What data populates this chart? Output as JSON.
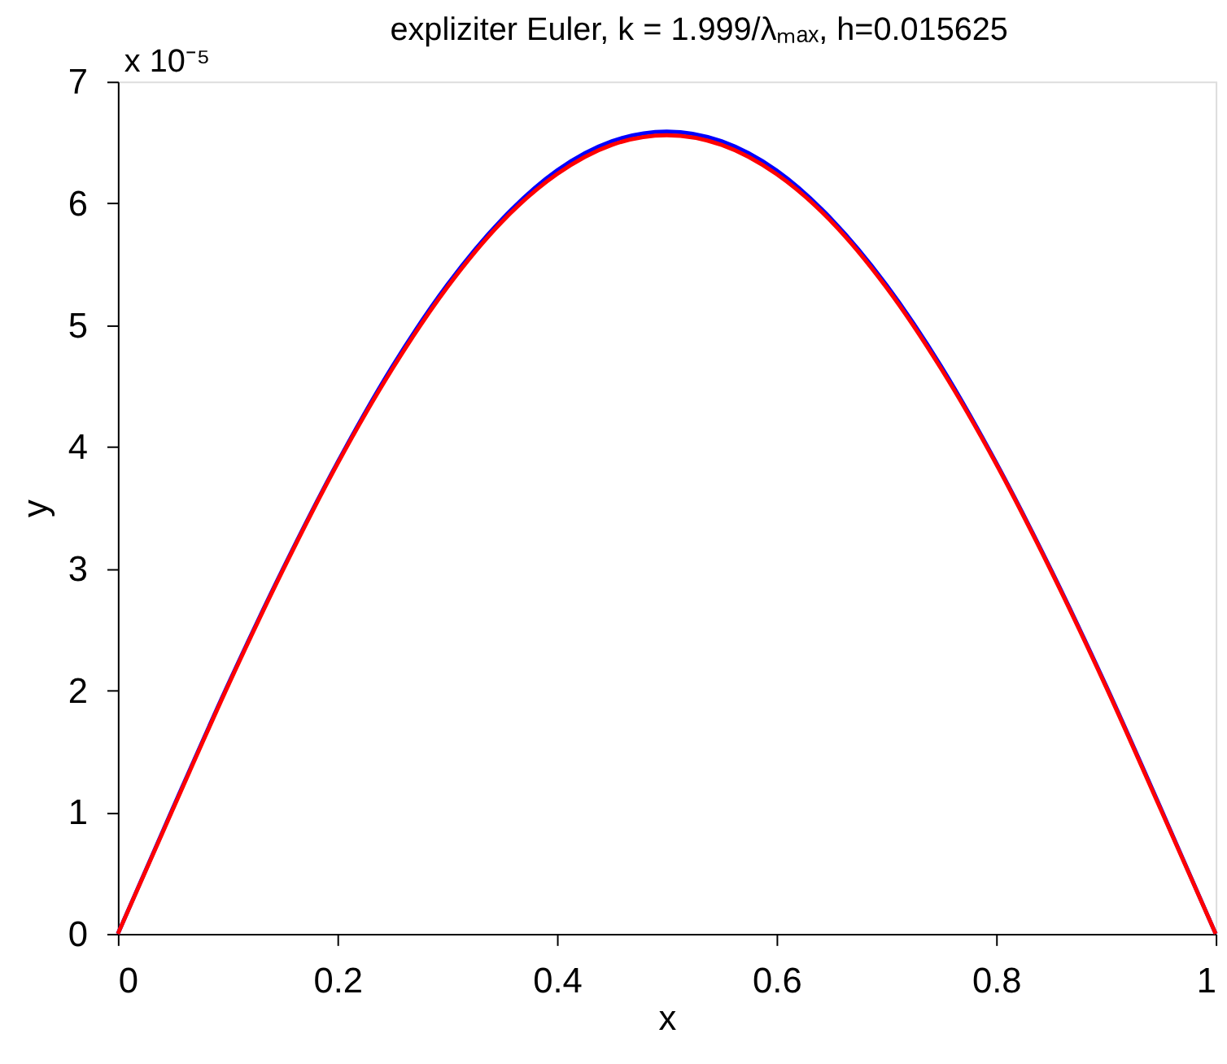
{
  "chart_data": {
    "type": "line",
    "title": "expliziter Euler, k = 1.999/λₘₐₓ, h=0.015625",
    "xlabel": "x",
    "ylabel": "y",
    "annotations": [
      "x 10⁻⁵"
    ],
    "x": [
      0,
      0.05,
      0.1,
      0.15,
      0.2,
      0.25,
      0.3,
      0.35,
      0.4,
      0.45,
      0.5,
      0.55,
      0.6,
      0.65,
      0.7,
      0.75,
      0.8,
      0.85,
      0.9,
      0.95,
      1
    ],
    "series": [
      {
        "color": "#0000ff",
        "values": [
          0,
          1.03,
          2.04,
          2.99,
          3.87,
          4.66,
          5.33,
          5.87,
          6.27,
          6.51,
          6.59,
          6.51,
          6.27,
          5.87,
          5.33,
          4.66,
          3.87,
          2.99,
          2.04,
          1.03,
          0
        ]
      },
      {
        "color": "#ff0000",
        "values": [
          0,
          1.02,
          2.03,
          2.98,
          3.86,
          4.64,
          5.31,
          5.85,
          6.24,
          6.48,
          6.56,
          6.48,
          6.24,
          5.85,
          5.31,
          4.64,
          3.86,
          2.98,
          2.03,
          1.02,
          0
        ]
      }
    ],
    "xlim": [
      0,
      1
    ],
    "xticks": [
      0,
      0.2,
      0.4,
      0.6,
      0.8,
      1
    ],
    "ylim": [
      0,
      7
    ],
    "yticks": [
      0,
      1,
      2,
      3,
      4,
      5,
      6,
      7
    ],
    "grid": false,
    "legend": false,
    "marker": "none",
    "line_style": "solid"
  }
}
